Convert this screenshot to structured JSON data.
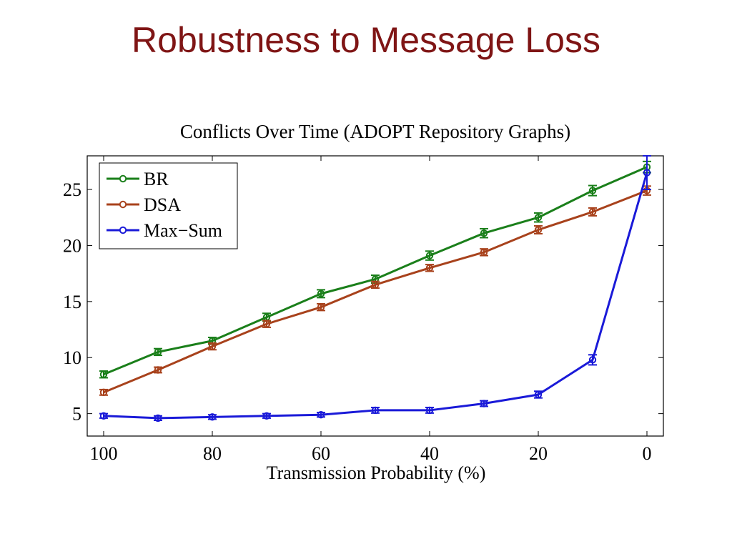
{
  "slide": {
    "title": "Robustness to Message Loss"
  },
  "chart_data": {
    "type": "line",
    "title": "Conflicts Over Time (ADOPT Repository Graphs)",
    "xlabel": "Transmission Probability (%)",
    "ylabel": "",
    "x": [
      100,
      90,
      80,
      70,
      60,
      50,
      40,
      30,
      20,
      10,
      0
    ],
    "x_reversed": true,
    "xlim": [
      100,
      0
    ],
    "ylim": [
      3,
      28
    ],
    "x_ticks": [
      100,
      80,
      60,
      40,
      20,
      0
    ],
    "y_ticks": [
      5,
      10,
      15,
      20,
      25
    ],
    "grid": false,
    "legend_position": "top-left",
    "error_bars": true,
    "series": [
      {
        "name": "BR",
        "color": "#1a7f1a",
        "values": [
          8.5,
          10.5,
          11.5,
          13.6,
          15.7,
          17.0,
          19.1,
          21.1,
          22.5,
          24.9,
          27.0
        ],
        "errors": [
          0.3,
          0.3,
          0.3,
          0.35,
          0.35,
          0.35,
          0.4,
          0.4,
          0.4,
          0.45,
          0.5
        ]
      },
      {
        "name": "DSA",
        "color": "#a8421c",
        "values": [
          6.9,
          8.9,
          11.0,
          13.0,
          14.5,
          16.5,
          18.0,
          19.4,
          21.4,
          23.0,
          24.9
        ],
        "errors": [
          0.25,
          0.25,
          0.3,
          0.3,
          0.3,
          0.3,
          0.3,
          0.3,
          0.35,
          0.35,
          0.4
        ]
      },
      {
        "name": "Max−Sum",
        "color": "#1a1ad8",
        "values": [
          4.8,
          4.6,
          4.7,
          4.8,
          4.9,
          5.3,
          5.3,
          5.9,
          6.7,
          9.8,
          26.5
        ],
        "errors": [
          0.2,
          0.2,
          0.2,
          0.2,
          0.2,
          0.25,
          0.25,
          0.25,
          0.3,
          0.45,
          1.5
        ]
      }
    ]
  }
}
